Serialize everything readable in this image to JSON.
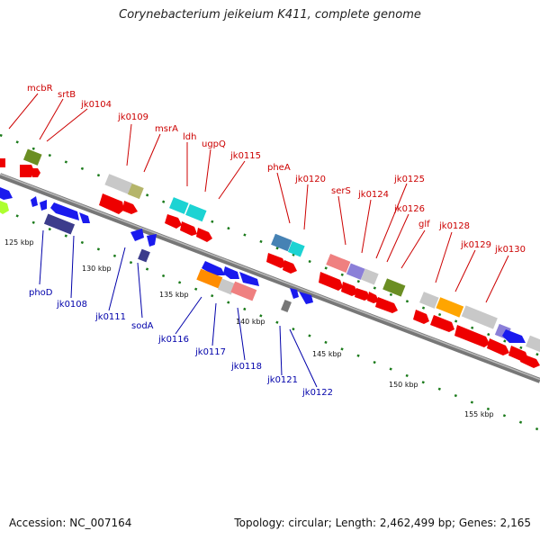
{
  "title": "Corynebacterium jeikeium K411, complete genome",
  "footer": {
    "accession": "Accession: NC_007164",
    "summary": "Topology: circular; Length: 2,462,499 bp; Genes: 2,165"
  },
  "ticks": [
    "125 kbp",
    "130 kbp",
    "135 kbp",
    "140 kbp",
    "145 kbp",
    "150 kbp",
    "155 kbp"
  ],
  "labels_top": [
    "mcbR",
    "srtB",
    "jk0104",
    "jk0109",
    "msrA",
    "ldh",
    "ugpQ",
    "jk0115",
    "pheA",
    "jk0120",
    "serS",
    "jk0124",
    "jk0125",
    "jk0126",
    "glf",
    "jk0128",
    "jk0129",
    "jk0130"
  ],
  "labels_bottom": [
    "phoD",
    "jk0108",
    "jk0111",
    "sodA",
    "jk0116",
    "jk0117",
    "jk0118",
    "jk0121",
    "jk0122"
  ],
  "colors": {
    "top_label": "#cc0000",
    "bottom_label": "#0000aa",
    "backbone": "#888888",
    "dots": "#1a7a1a"
  }
}
